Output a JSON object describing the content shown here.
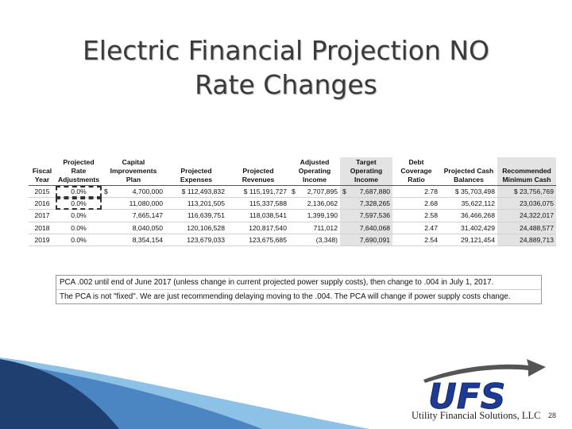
{
  "slide": {
    "title_line1": "Electric Financial Projection NO",
    "title_line2": "Rate Changes",
    "page_number": "28"
  },
  "table": {
    "headers": [
      "Fiscal\nYear",
      "Projected\nRate\nAdjustments",
      "Capital\nImprovements\nPlan",
      "Projected\nExpenses",
      "Projected\nRevenues",
      "Adjusted\nOperating\nIncome",
      "Target\nOperating\nIncome",
      "Debt\nCoverage\nRatio",
      "Projected Cash\nBalances",
      "Recommended\nMinimum Cash"
    ],
    "rows": [
      [
        "2015",
        "0.0%",
        "$",
        "4,700,000",
        "$ 112,493,832",
        "$ 115,191,727",
        "$",
        "2,707,895",
        "$",
        "7,687,880",
        "2.78",
        "$ 35,703,498",
        "$ 23,756,769"
      ],
      [
        "2016",
        "0.0%",
        "",
        "11,080,000",
        "113,201,505",
        "115,337,588",
        "",
        "2,136,062",
        "",
        "7,328,265",
        "2.68",
        "35,622,112",
        "23,036,075"
      ],
      [
        "2017",
        "0.0%",
        "",
        "7,665,147",
        "116,639,751",
        "118,038,541",
        "",
        "1,399,190",
        "",
        "7,597,536",
        "2.58",
        "36,466,268",
        "24,322,017"
      ],
      [
        "2018",
        "0.0%",
        "",
        "8,040,050",
        "120,106,528",
        "120,817,540",
        "",
        "711,012",
        "",
        "7,640,068",
        "2.47",
        "31,402,429",
        "24,488,577"
      ],
      [
        "2019",
        "0.0%",
        "",
        "8,354,154",
        "123,679,033",
        "123,675,685",
        "",
        "(3,348)",
        "",
        "7,690,091",
        "2.54",
        "29,121,454",
        "24,889,713"
      ]
    ]
  },
  "notes": {
    "line1": "PCA .002 until end of June 2017 (unless change in current projected power supply costs), then change to .004 in July 1, 2017.",
    "line2": "The PCA is not \"fixed\". We are just recommending delaying moving to the .004. The PCA will change if power supply costs change."
  },
  "logo": {
    "acronym": "UFS",
    "company": "Utility Financial Solutions, LLC",
    "colors": {
      "navy": "#1f3a93",
      "arrow": "#555555"
    }
  },
  "decoration": {
    "colors": {
      "dark_blue": "#1e3f6f",
      "mid_blue": "#4b86c2",
      "light_blue": "#8ec1e6"
    }
  }
}
